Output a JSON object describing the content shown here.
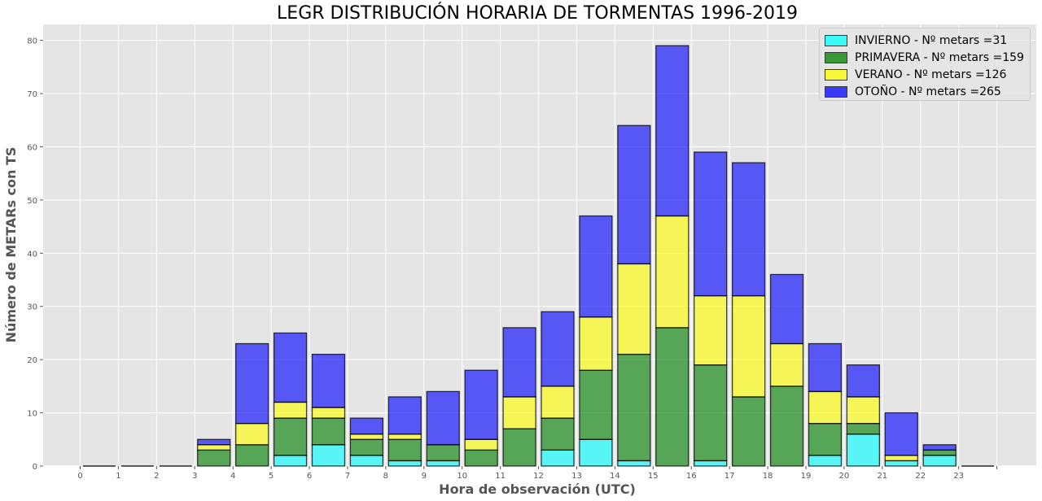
{
  "chart_data": {
    "type": "bar",
    "stacked": true,
    "title": "LEGR DISTRIBUCIÓN HORARIA DE TORMENTAS 1996-2019",
    "xlabel": "Hora de observación (UTC)",
    "ylabel": "Número de METARs con TS",
    "ylim": [
      0,
      83
    ],
    "yticks": [
      0,
      10,
      20,
      30,
      40,
      50,
      60,
      70,
      80
    ],
    "categories": [
      "0",
      "1",
      "2",
      "3",
      "4",
      "5",
      "6",
      "7",
      "8",
      "9",
      "10",
      "11",
      "12",
      "13",
      "14",
      "15",
      "16",
      "17",
      "18",
      "19",
      "20",
      "21",
      "22",
      "23"
    ],
    "grid": true,
    "legend_position": "top-right",
    "series": [
      {
        "name": "INVIERNO - Nº metars =31",
        "color": "#00ffff",
        "values": [
          0,
          0,
          0,
          0,
          0,
          2,
          4,
          2,
          1,
          1,
          0,
          0,
          3,
          5,
          1,
          0,
          1,
          0,
          0,
          2,
          6,
          1,
          2,
          0
        ]
      },
      {
        "name": "PRIMAVERA - Nº metars =159",
        "color": "#008000",
        "values": [
          0,
          0,
          0,
          3,
          4,
          7,
          5,
          3,
          4,
          3,
          3,
          7,
          6,
          13,
          20,
          26,
          18,
          13,
          15,
          6,
          2,
          0,
          1,
          0
        ]
      },
      {
        "name": "VERANO - Nº metars =126",
        "color": "#ffff00",
        "values": [
          0,
          0,
          0,
          1,
          4,
          3,
          2,
          1,
          1,
          0,
          2,
          6,
          6,
          10,
          17,
          21,
          13,
          19,
          8,
          6,
          5,
          1,
          0,
          0
        ]
      },
      {
        "name": "OTOÑO - Nº metars =265",
        "color": "#0000ff",
        "values": [
          0,
          0,
          0,
          1,
          15,
          13,
          10,
          3,
          7,
          10,
          13,
          13,
          14,
          19,
          26,
          32,
          27,
          25,
          13,
          9,
          6,
          8,
          1,
          0
        ]
      }
    ]
  }
}
